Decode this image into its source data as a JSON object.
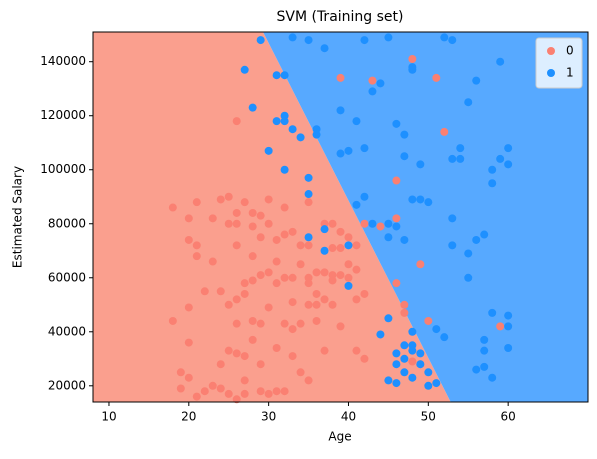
{
  "chart_data": {
    "type": "scatter",
    "title": "SVM (Training set)",
    "xlabel": "Age",
    "ylabel": "Estimated Salary",
    "xlim": [
      8,
      70
    ],
    "ylim": [
      14000,
      151000
    ],
    "xticks": [
      10,
      20,
      30,
      40,
      50,
      60
    ],
    "yticks": [
      20000,
      40000,
      60000,
      80000,
      100000,
      120000,
      140000
    ],
    "legend": "upper right",
    "decision_regions": {
      "colors": [
        "#fa9f8e",
        "#57a9ff"
      ],
      "boundary_x": [
        29.3,
        52.8
      ],
      "boundary_y": [
        151000,
        14000
      ]
    },
    "series": [
      {
        "name": "0",
        "color": "#fa8072",
        "x": [
          18,
          18,
          19,
          19,
          20,
          20,
          20,
          20,
          20,
          21,
          21,
          21,
          21,
          22,
          22,
          23,
          23,
          23,
          24,
          24,
          24,
          24,
          25,
          25,
          25,
          25,
          25,
          26,
          26,
          26,
          26,
          26,
          26,
          26,
          26,
          27,
          27,
          27,
          27,
          27,
          28,
          28,
          28,
          28,
          28,
          29,
          29,
          29,
          29,
          29,
          29,
          30,
          30,
          30,
          30,
          30,
          31,
          31,
          31,
          31,
          31,
          32,
          32,
          32,
          32,
          32,
          33,
          33,
          33,
          33,
          34,
          34,
          34,
          34,
          35,
          35,
          35,
          35,
          35,
          36,
          36,
          36,
          36,
          37,
          37,
          37,
          37,
          38,
          38,
          38,
          38,
          38,
          39,
          39,
          39,
          39,
          40,
          40,
          40,
          41,
          41,
          41,
          42,
          42,
          42,
          43,
          44,
          46,
          46,
          46,
          47,
          47,
          48,
          48,
          49,
          49,
          50,
          51,
          52,
          59,
          41,
          39,
          35,
          33,
          27,
          28
        ],
        "y": [
          86000,
          44000,
          19000,
          25000,
          23000,
          36000,
          49000,
          82000,
          74000,
          88000,
          72000,
          68000,
          16000,
          55000,
          18000,
          20000,
          82000,
          66000,
          89000,
          55000,
          28000,
          19000,
          90000,
          80000,
          50000,
          33000,
          17000,
          84000,
          80000,
          72000,
          52000,
          43000,
          32000,
          15000,
          118000,
          88000,
          58000,
          54000,
          31000,
          17000,
          84000,
          79000,
          59000,
          44000,
          37000,
          83000,
          75000,
          61000,
          43000,
          28000,
          18000,
          89000,
          80000,
          62000,
          49000,
          17000,
          74000,
          66000,
          58000,
          34000,
          18000,
          86000,
          76000,
          60000,
          43000,
          18000,
          60000,
          51000,
          41000,
          31000,
          72000,
          65000,
          43000,
          25000,
          88000,
          72000,
          58000,
          50000,
          22000,
          62000,
          54000,
          50000,
          44000,
          80000,
          62000,
          52000,
          33000,
          80000,
          71000,
          61000,
          50000,
          59000,
          77000,
          71000,
          61000,
          42000,
          75000,
          60000,
          65000,
          63000,
          52000,
          72000,
          80000,
          54000,
          30000,
          133000,
          79000,
          96000,
          82000,
          58000,
          50000,
          47000,
          141000,
          29000,
          65000,
          28000,
          44000,
          134000,
          114000,
          42000,
          33000,
          134000,
          60000,
          77000,
          22000,
          68000
        ]
      },
      {
        "name": "1",
        "color": "#1e90ff",
        "x": [
          29,
          31,
          33,
          35,
          37,
          42,
          45,
          48,
          48,
          52,
          53,
          56,
          55,
          59,
          27,
          28,
          32,
          32,
          31,
          32,
          33,
          34,
          36,
          36,
          39,
          39,
          40,
          41,
          42,
          43,
          44,
          46,
          47,
          47,
          49,
          48,
          50,
          49,
          46,
          45,
          45,
          47,
          41,
          40,
          40,
          37,
          37,
          35,
          35,
          35,
          30,
          32,
          53,
          54,
          53,
          53,
          55,
          56,
          57,
          58,
          58,
          59,
          60,
          60,
          54,
          55,
          58,
          60,
          60,
          60,
          57,
          56,
          58,
          57,
          51,
          51,
          50,
          48,
          47,
          46,
          46,
          47,
          48,
          49,
          50,
          48,
          45,
          44,
          46,
          49,
          42,
          43,
          45,
          47,
          48,
          52,
          57
        ],
        "y": [
          148000,
          135000,
          149000,
          148000,
          145000,
          148000,
          149000,
          138000,
          137000,
          149000,
          148000,
          133000,
          125000,
          140000,
          137000,
          123000,
          135000,
          118000,
          118000,
          120000,
          115000,
          112000,
          115000,
          113000,
          122000,
          106000,
          107000,
          118000,
          108000,
          129000,
          132000,
          117000,
          113000,
          105000,
          102000,
          89000,
          88000,
          89000,
          79000,
          80000,
          75000,
          74000,
          87000,
          72000,
          57000,
          78000,
          70000,
          97000,
          91000,
          75000,
          107000,
          100000,
          104000,
          104000,
          82000,
          72000,
          69000,
          74000,
          76000,
          95000,
          100000,
          104000,
          102000,
          108000,
          108000,
          60000,
          47000,
          46000,
          42000,
          34000,
          27000,
          26000,
          23000,
          37000,
          41000,
          21000,
          20000,
          23000,
          25000,
          21000,
          28000,
          30000,
          33000,
          32000,
          25000,
          40000,
          45000,
          39000,
          32000,
          28000,
          90000,
          80000,
          22000,
          35000,
          35000,
          38000,
          33000
        ]
      }
    ]
  }
}
